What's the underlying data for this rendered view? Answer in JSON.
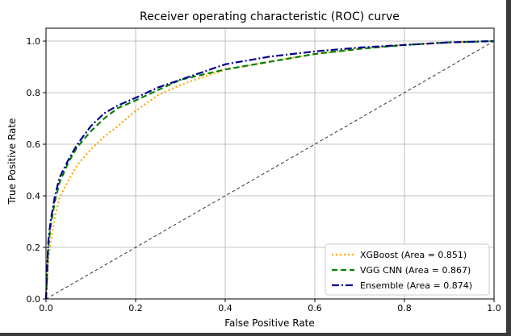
{
  "chart_data": {
    "type": "line",
    "title": "Receiver operating characteristic (ROC) curve",
    "xlabel": "False Positive Rate",
    "ylabel": "True Positive Rate",
    "xlim": [
      0.0,
      1.0
    ],
    "ylim": [
      0.0,
      1.05
    ],
    "xticks": [
      "0.0",
      "0.2",
      "0.4",
      "0.6",
      "0.8",
      "1.0"
    ],
    "yticks": [
      "0.0",
      "0.2",
      "0.4",
      "0.6",
      "0.8",
      "1.0"
    ],
    "grid": true,
    "legend_position": "lower right",
    "series": [
      {
        "name": "XGBoost (Area = 0.851)",
        "color": "#ffa500",
        "style": "dotted",
        "x": [
          0.0,
          0.005,
          0.01,
          0.02,
          0.03,
          0.05,
          0.07,
          0.1,
          0.13,
          0.16,
          0.2,
          0.25,
          0.3,
          0.35,
          0.4,
          0.5,
          0.6,
          0.7,
          0.8,
          0.9,
          1.0
        ],
        "y": [
          0.0,
          0.15,
          0.22,
          0.32,
          0.39,
          0.46,
          0.52,
          0.58,
          0.63,
          0.67,
          0.73,
          0.79,
          0.83,
          0.86,
          0.89,
          0.92,
          0.95,
          0.97,
          0.985,
          0.995,
          1.0
        ]
      },
      {
        "name": "VGG CNN (Area = 0.867)",
        "color": "#008000",
        "style": "dashed",
        "x": [
          0.0,
          0.005,
          0.01,
          0.02,
          0.03,
          0.05,
          0.07,
          0.1,
          0.13,
          0.16,
          0.2,
          0.25,
          0.3,
          0.35,
          0.4,
          0.5,
          0.6,
          0.7,
          0.8,
          0.9,
          1.0
        ],
        "y": [
          0.0,
          0.2,
          0.28,
          0.38,
          0.45,
          0.53,
          0.59,
          0.65,
          0.7,
          0.74,
          0.77,
          0.81,
          0.85,
          0.87,
          0.89,
          0.92,
          0.95,
          0.97,
          0.985,
          0.995,
          1.0
        ]
      },
      {
        "name": "Ensemble (Area = 0.874)",
        "color": "#00008b",
        "style": "dashdot",
        "x": [
          0.0,
          0.005,
          0.01,
          0.02,
          0.03,
          0.05,
          0.07,
          0.1,
          0.13,
          0.16,
          0.2,
          0.25,
          0.3,
          0.35,
          0.4,
          0.5,
          0.6,
          0.7,
          0.8,
          0.9,
          1.0
        ],
        "y": [
          0.0,
          0.22,
          0.3,
          0.4,
          0.47,
          0.54,
          0.6,
          0.67,
          0.72,
          0.75,
          0.78,
          0.82,
          0.85,
          0.88,
          0.91,
          0.94,
          0.96,
          0.975,
          0.985,
          0.995,
          1.0
        ]
      }
    ],
    "reference_line": {
      "color": "#333333",
      "style": "dashed",
      "x": [
        0.0,
        1.0
      ],
      "y": [
        0.0,
        1.0
      ]
    }
  }
}
